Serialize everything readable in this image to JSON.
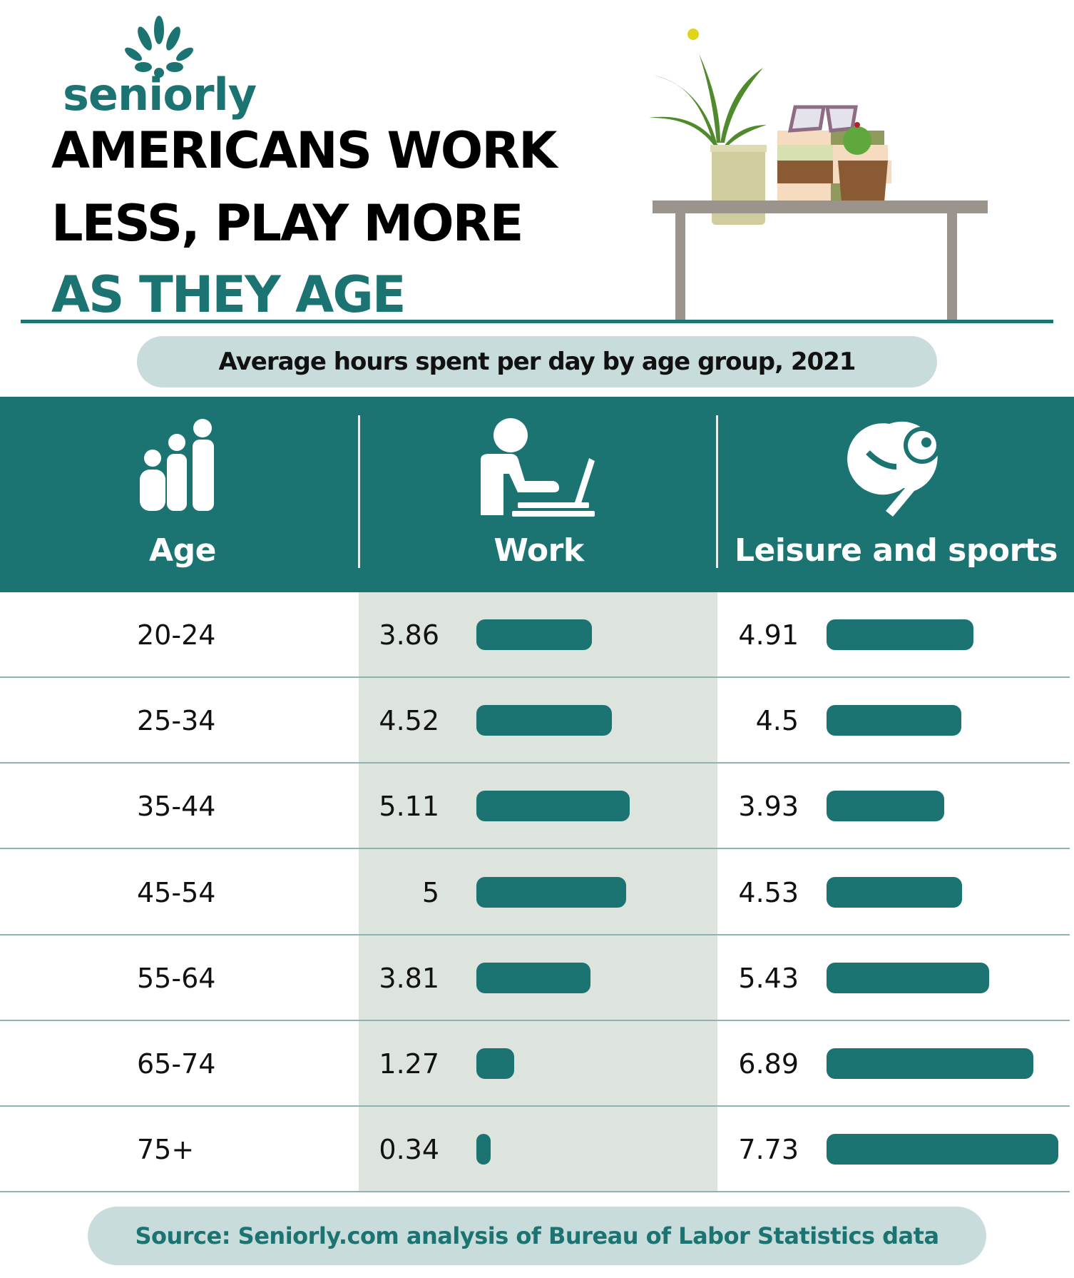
{
  "brand": {
    "name": "seniorly",
    "color": "#1b7471"
  },
  "title": {
    "line1": "AMERICANS WORK",
    "line2": "LESS, PLAY MORE",
    "line3": "AS THEY AGE"
  },
  "subtitle": "Average hours spent per day by age group, 2021",
  "headers": {
    "age": "Age",
    "work": "Work",
    "leisure": "Leisure and sports"
  },
  "icons": {
    "age": "family-icon",
    "work": "person-laptop-icon",
    "leisure": "ping-pong-icon"
  },
  "source": "Source: Seniorly.com analysis of Bureau of Labor Statistics data",
  "chart_data": {
    "type": "bar",
    "categories": [
      "20-24",
      "25-34",
      "35-44",
      "45-54",
      "55-64",
      "65-74",
      "75+"
    ],
    "series": [
      {
        "name": "Work",
        "values": [
          3.86,
          4.52,
          5.11,
          5,
          3.81,
          1.27,
          0.34
        ],
        "labels": [
          "3.86",
          "4.52",
          "5.11",
          "5",
          "3.81",
          "1.27",
          "0.34"
        ]
      },
      {
        "name": "Leisure and sports",
        "values": [
          4.91,
          4.5,
          3.93,
          4.53,
          5.43,
          6.89,
          7.73
        ],
        "labels": [
          "4.91",
          "4.5",
          "3.93",
          "4.53",
          "5.43",
          "6.89",
          "7.73"
        ]
      }
    ],
    "bar_color": "#1b7471"
  }
}
